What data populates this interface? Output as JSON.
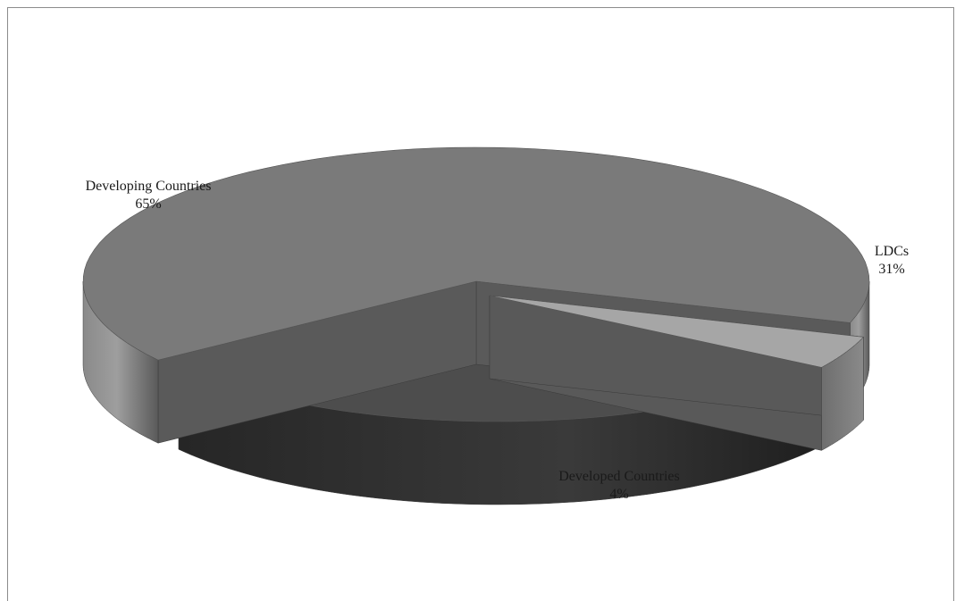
{
  "chart_data": {
    "type": "pie",
    "style": "3d-exploded",
    "title": "",
    "legend": "none",
    "slices": [
      {
        "name": "Developing Countries",
        "value": 65,
        "label": "65%",
        "color": "#7a7a7a"
      },
      {
        "name": "LDCs",
        "value": 31,
        "label": "31%",
        "color": "#4d4d4d"
      },
      {
        "name": "Developed Countries",
        "value": 4,
        "label": "4%",
        "color": "#a6a6a6"
      }
    ]
  }
}
